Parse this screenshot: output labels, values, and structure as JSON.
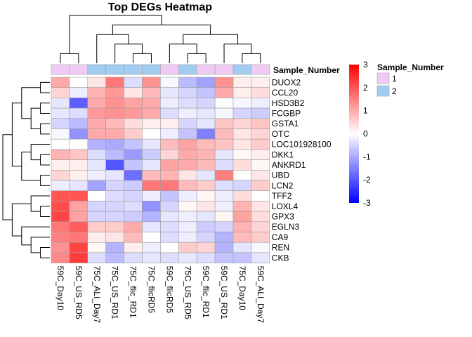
{
  "chart_data": {
    "type": "heatmap",
    "title": "Top DEGs Heatmap",
    "rows": [
      "DUOX2",
      "CCL20",
      "HSD3B2",
      "FCGBP",
      "GSTA1",
      "OTC",
      "LOC101928100",
      "DKK1",
      "ANKRD1",
      "UBD",
      "LCN2",
      "TFF2",
      "LOXL4",
      "GPX3",
      "EGLN3",
      "CA9",
      "REN",
      "CKB"
    ],
    "columns": [
      "59C_Day10",
      "59C_US_RD5",
      "75C_ALI_Day7",
      "75C_US_RD1",
      "75C_flic_RD1",
      "75C_flicRD5",
      "59C_flicRD5",
      "75C_US_RD5",
      "59C_flic_RD1",
      "59C_US_RD1",
      "75C_Day10",
      "59C_ALI_Day7"
    ],
    "values": [
      [
        1.0,
        0.0,
        0.3,
        1.6,
        -0.4,
        1.3,
        -0.1,
        -0.8,
        -1.1,
        1.3,
        0.2,
        0.2
      ],
      [
        0.5,
        -0.2,
        0.9,
        1.2,
        0.3,
        0.8,
        -0.3,
        -0.5,
        -0.7,
        1.0,
        0.2,
        0.4
      ],
      [
        -0.3,
        -1.9,
        1.0,
        1.3,
        1.1,
        1.0,
        -0.2,
        -0.4,
        -0.5,
        0.0,
        -0.1,
        -0.2
      ],
      [
        -0.3,
        -0.4,
        1.2,
        1.3,
        1.2,
        1.0,
        -0.4,
        -0.2,
        -0.3,
        -0.1,
        -0.5,
        -0.6
      ],
      [
        -0.5,
        -0.8,
        1.0,
        0.8,
        0.4,
        0.2,
        0.2,
        -0.5,
        -0.3,
        0.7,
        0.5,
        0.7
      ],
      [
        -0.1,
        -1.3,
        1.0,
        1.0,
        0.6,
        0.0,
        -0.2,
        -0.7,
        -1.5,
        0.8,
        0.3,
        0.5
      ],
      [
        0.0,
        0.0,
        -0.9,
        -1.0,
        -0.7,
        -0.3,
        0.8,
        1.1,
        0.8,
        0.7,
        0.3,
        0.6
      ],
      [
        0.9,
        0.7,
        -0.4,
        -0.8,
        -1.2,
        -0.6,
        0.5,
        1.0,
        0.9,
        -0.3,
        0.1,
        0.2
      ],
      [
        0.2,
        0.2,
        -0.3,
        -2.0,
        -0.7,
        -0.3,
        1.1,
        1.0,
        0.8,
        -0.4,
        0.4,
        0.1
      ],
      [
        0.5,
        0.2,
        -0.2,
        -0.3,
        -1.7,
        0.8,
        0.9,
        0.3,
        -0.3,
        1.5,
        0.0,
        0.3
      ],
      [
        -0.2,
        -0.3,
        -1.1,
        -0.5,
        -0.6,
        1.6,
        1.6,
        0.8,
        0.6,
        -0.4,
        -0.5,
        0.6
      ],
      [
        2.0,
        2.0,
        0.0,
        -0.4,
        -0.5,
        -0.2,
        -0.7,
        -0.2,
        0.1,
        -0.2,
        0.4,
        0.0
      ],
      [
        2.1,
        1.1,
        -0.5,
        -0.5,
        -0.4,
        -1.3,
        -0.5,
        0.1,
        0.3,
        -0.2,
        0.9,
        0.3
      ],
      [
        2.2,
        1.1,
        -0.5,
        -0.5,
        -0.6,
        -0.9,
        -0.3,
        -0.2,
        -0.3,
        0.1,
        1.1,
        0.4
      ],
      [
        1.6,
        1.9,
        0.6,
        0.6,
        1.0,
        -0.3,
        -0.4,
        -0.2,
        -0.6,
        -0.5,
        0.9,
        0.5
      ],
      [
        1.5,
        1.6,
        0.2,
        0.3,
        0.8,
        0.0,
        -0.4,
        -0.2,
        -0.5,
        -0.9,
        0.8,
        0.6
      ],
      [
        1.3,
        2.2,
        0.1,
        -0.9,
        0.2,
        -0.2,
        0.0,
        0.6,
        0.5,
        -0.9,
        -0.3,
        -0.1
      ],
      [
        1.4,
        2.3,
        -0.4,
        -0.8,
        -0.4,
        -0.3,
        -0.4,
        -0.3,
        -0.4,
        -0.7,
        -0.7,
        -0.3
      ]
    ],
    "color_scale": {
      "min": -3,
      "max": 3,
      "low": "#0000ff",
      "mid": "#ffffff",
      "high": "#ff0000"
    },
    "colorbar_ticks": [
      "3",
      "2",
      "1",
      "0",
      "-1",
      "-2",
      "-3"
    ],
    "annotation": {
      "label": "Sample_Number",
      "values": [
        "1",
        "1",
        "2",
        "2",
        "2",
        "2",
        "1",
        "2",
        "1",
        "1",
        "2",
        "1"
      ],
      "legend_title": "Sample_Number",
      "legend_items": [
        {
          "label": "1",
          "color": "#f0ccf5"
        },
        {
          "label": "2",
          "color": "#a2cdf2"
        }
      ]
    },
    "legend_placement": "right",
    "grid": false
  }
}
